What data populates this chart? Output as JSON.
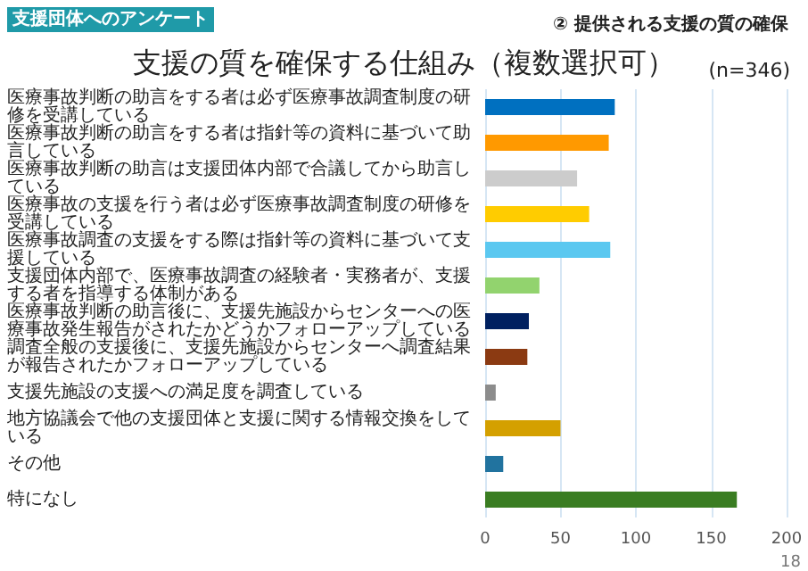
{
  "chart_data": {
    "type": "bar",
    "orientation": "horizontal",
    "title": "支援の質を確保する仕組み（複数選択可）",
    "subtitle": "② 提供される支援の質の確保",
    "annotations": [
      "支援団体へのアンケート",
      "(n=346)",
      "18"
    ],
    "categories": [
      "医療事故判断の助言をする者は必ず医療事故調査制度の研修を受講している",
      "医療事故判断の助言をする者は指針等の資料に基づいて助言している",
      "医療事故判断の助言は支援団体内部で合議してから助言している",
      "医療事故の支援を行う者は必ず医療事故調査制度の研修を受講している",
      "医療事故調査の支援をする際は指針等の資料に基づいて支援している",
      "支援団体内部で、医療事故調査の経験者・実務者が、支援する者を指導する体制がある",
      "医療事故判断の助言後に、支援先施設からセンターへの医療事故発生報告がされたかどうかフォローアップしている",
      "調査全般の支援後に、支援先施設からセンターへ調査結果が報告されたかフォローアップしている",
      "支援先施設の支援への満足度を調査している",
      "地方協議会で他の支援団体と支援に関する情報交換をしている",
      "その他",
      "特になし"
    ],
    "values": [
      86,
      82,
      61,
      69,
      83,
      36,
      29,
      28,
      7,
      50,
      12,
      167
    ],
    "colors": [
      "#0070c0",
      "#ff9900",
      "#cccccc",
      "#ffcc00",
      "#5bc8f0",
      "#92d36e",
      "#002060",
      "#8b3a12",
      "#8c8c8c",
      "#d4a000",
      "#21739f",
      "#3a7d22"
    ],
    "xlim": [
      0,
      200
    ],
    "xticks": [
      0,
      50,
      100,
      150,
      200
    ],
    "grid": "x"
  }
}
